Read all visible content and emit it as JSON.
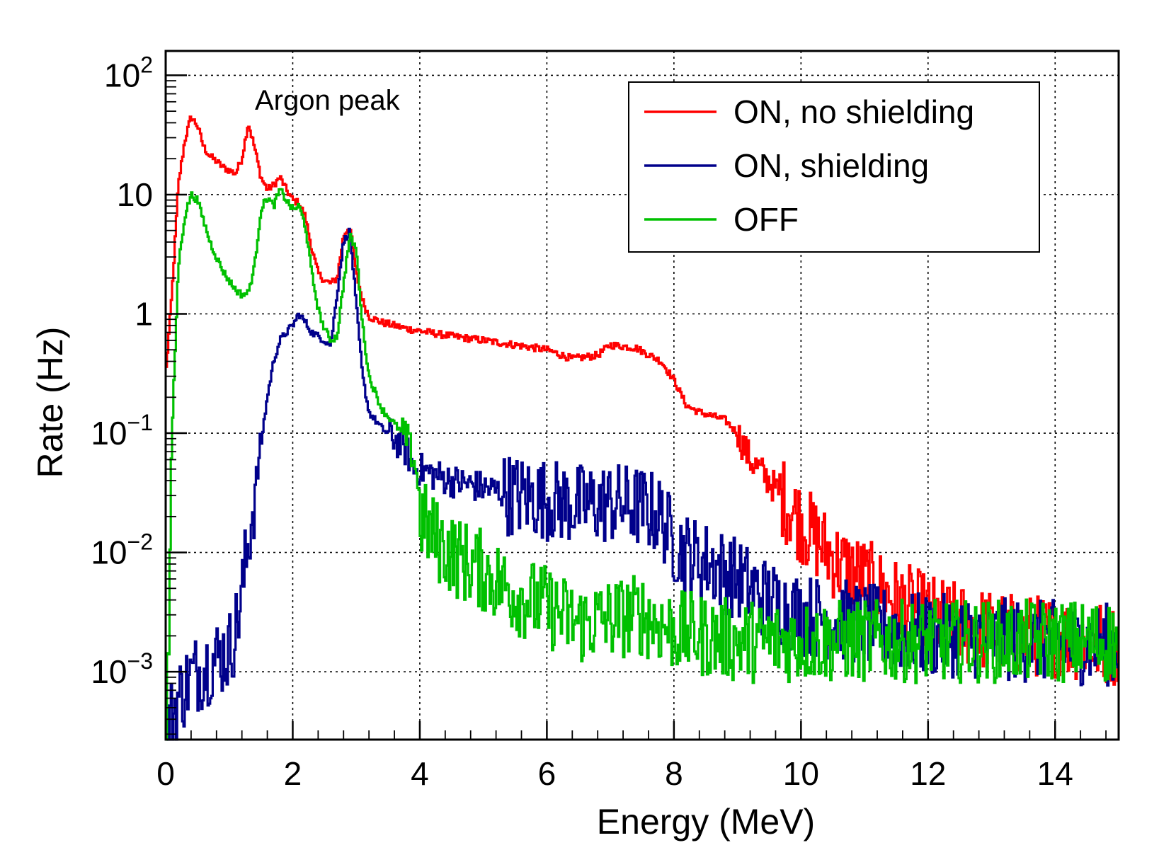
{
  "chart_data": {
    "type": "line",
    "title": "",
    "xlabel": "Energy (MeV)",
    "ylabel": "Rate (Hz)",
    "xlim": [
      0,
      15
    ],
    "ylim": [
      0.00027,
      160
    ],
    "yscale": "log",
    "grid": true,
    "legend_position": "top-right",
    "x_ticks": [
      0,
      2,
      4,
      6,
      8,
      10,
      12,
      14
    ],
    "x_tick_labels": [
      "0",
      "2",
      "4",
      "6",
      "8",
      "10",
      "12",
      "14"
    ],
    "y_ticks": [
      {
        "value": 0.001,
        "base": "10",
        "exp": "−3"
      },
      {
        "value": 0.01,
        "base": "10",
        "exp": "−2"
      },
      {
        "value": 0.1,
        "base": "10",
        "exp": "−1"
      },
      {
        "value": 1,
        "base": "1",
        "exp": ""
      },
      {
        "value": 10,
        "base": "10",
        "exp": ""
      },
      {
        "value": 100,
        "base": "10",
        "exp": "2"
      }
    ],
    "annotations": [
      {
        "text": "Argon peak",
        "x": 2.8,
        "y": 60
      }
    ],
    "series": [
      {
        "name": "ON, no shielding",
        "color": "#ff0000",
        "x": [
          0.0,
          0.1,
          0.2,
          0.3,
          0.4,
          0.5,
          0.6,
          0.7,
          0.8,
          0.9,
          1.0,
          1.1,
          1.2,
          1.3,
          1.4,
          1.5,
          1.6,
          1.7,
          1.8,
          1.9,
          2.0,
          2.1,
          2.2,
          2.3,
          2.4,
          2.5,
          2.6,
          2.7,
          2.8,
          2.9,
          3.0,
          3.1,
          3.2,
          3.4,
          3.6,
          3.8,
          4.0,
          4.5,
          5.0,
          5.5,
          6.0,
          6.4,
          6.8,
          7.0,
          7.4,
          7.8,
          8.0,
          8.2,
          8.4,
          8.8,
          9.0,
          9.2,
          9.5,
          9.8,
          10.0,
          10.3,
          10.6,
          11.0,
          11.5,
          12.0,
          12.5,
          13.0,
          13.5,
          14.0,
          14.5,
          15.0
        ],
        "values": [
          0.3,
          1.5,
          12,
          28,
          45,
          38,
          25,
          21,
          19,
          17,
          16,
          15,
          20,
          40,
          25,
          14,
          11,
          12,
          14,
          11,
          9,
          8.5,
          6.5,
          3.5,
          2.2,
          1.9,
          1.8,
          2.0,
          4.5,
          5.5,
          2.2,
          1.3,
          0.95,
          0.85,
          0.8,
          0.75,
          0.72,
          0.65,
          0.6,
          0.55,
          0.5,
          0.42,
          0.45,
          0.55,
          0.52,
          0.4,
          0.28,
          0.17,
          0.15,
          0.13,
          0.1,
          0.06,
          0.04,
          0.025,
          0.018,
          0.012,
          0.008,
          0.006,
          0.004,
          0.003,
          0.0025,
          0.0022,
          0.002,
          0.002,
          0.0018,
          0.0017
        ]
      },
      {
        "name": "ON, shielding",
        "color": "#00008b",
        "x": [
          0.0,
          0.2,
          0.4,
          0.6,
          0.8,
          1.0,
          1.1,
          1.2,
          1.3,
          1.4,
          1.5,
          1.6,
          1.7,
          1.8,
          1.9,
          2.0,
          2.1,
          2.2,
          2.3,
          2.4,
          2.5,
          2.6,
          2.7,
          2.8,
          2.9,
          3.0,
          3.1,
          3.2,
          3.4,
          3.6,
          3.8,
          3.9,
          4.0,
          4.5,
          5.0,
          5.5,
          6.0,
          6.5,
          7.0,
          7.5,
          7.8,
          8.0,
          8.3,
          8.6,
          9.0,
          9.5,
          10.0,
          10.5,
          11.0,
          11.5,
          12.0,
          12.5,
          13.0,
          13.5,
          14.0,
          14.5,
          15.0
        ],
        "values": [
          0.0003,
          0.0006,
          0.0009,
          0.0011,
          0.0013,
          0.0015,
          0.0022,
          0.0045,
          0.012,
          0.03,
          0.08,
          0.2,
          0.4,
          0.6,
          0.7,
          0.8,
          1.0,
          0.85,
          0.7,
          0.65,
          0.6,
          0.55,
          1.5,
          4.0,
          5.0,
          1.2,
          0.3,
          0.15,
          0.11,
          0.09,
          0.07,
          0.05,
          0.05,
          0.04,
          0.035,
          0.03,
          0.028,
          0.025,
          0.026,
          0.024,
          0.02,
          0.012,
          0.009,
          0.008,
          0.006,
          0.004,
          0.003,
          0.0028,
          0.0025,
          0.0022,
          0.002,
          0.002,
          0.0019,
          0.0018,
          0.0018,
          0.0017,
          0.0017
        ]
      },
      {
        "name": "OFF",
        "color": "#00c000",
        "x": [
          0.0,
          0.05,
          0.1,
          0.2,
          0.3,
          0.4,
          0.5,
          0.6,
          0.7,
          0.8,
          0.9,
          1.0,
          1.1,
          1.2,
          1.3,
          1.4,
          1.5,
          1.6,
          1.7,
          1.8,
          1.9,
          2.0,
          2.1,
          2.2,
          2.3,
          2.4,
          2.5,
          2.6,
          2.7,
          2.8,
          2.9,
          3.0,
          3.1,
          3.2,
          3.4,
          3.6,
          3.8,
          3.95,
          4.0,
          4.3,
          4.6,
          5.0,
          5.5,
          6.0,
          6.5,
          7.0,
          7.5,
          8.0,
          8.5,
          9.0,
          9.5,
          10.0,
          11.0,
          12.0,
          13.0,
          14.0,
          15.0
        ],
        "values": [
          0.0003,
          0.002,
          0.1,
          2.5,
          6.5,
          10,
          9,
          6,
          4,
          3,
          2.3,
          1.9,
          1.6,
          1.45,
          1.5,
          2.5,
          7.5,
          9.5,
          8,
          11,
          9,
          7.5,
          8,
          5.5,
          2.2,
          1.1,
          0.75,
          0.6,
          0.65,
          1.8,
          4.5,
          3.5,
          0.8,
          0.3,
          0.16,
          0.12,
          0.09,
          0.05,
          0.02,
          0.012,
          0.009,
          0.007,
          0.0045,
          0.0035,
          0.0025,
          0.0028,
          0.003,
          0.0022,
          0.002,
          0.0018,
          0.0018,
          0.0018,
          0.0018,
          0.0018,
          0.0018,
          0.0018,
          0.0018
        ]
      }
    ]
  }
}
